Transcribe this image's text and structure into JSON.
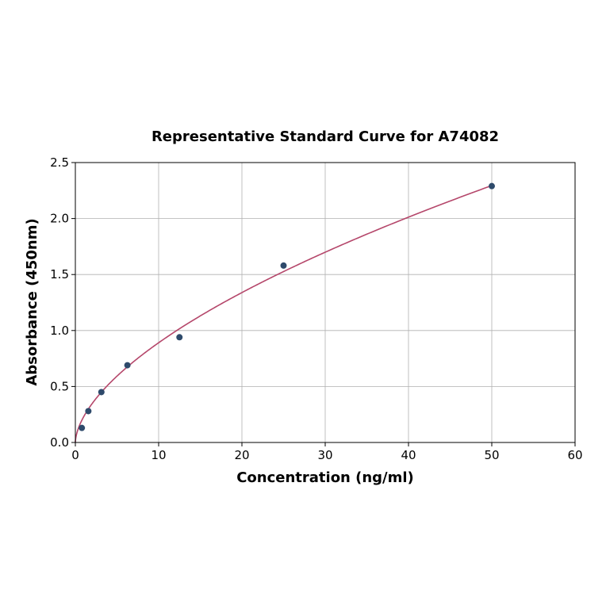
{
  "chart_data": {
    "type": "scatter",
    "title": "Representative Standard Curve for A74082",
    "xlabel": "Concentration (ng/ml)",
    "ylabel": "Absorbance (450nm)",
    "xlim": [
      0,
      60
    ],
    "ylim": [
      0,
      2.5
    ],
    "xticks": [
      "0",
      "10",
      "20",
      "30",
      "40",
      "50",
      "60"
    ],
    "yticks": [
      "0.0",
      "0.5",
      "1.0",
      "1.5",
      "2.0",
      "2.5"
    ],
    "grid": true,
    "points": [
      {
        "x": 0.78,
        "y": 0.13
      },
      {
        "x": 1.56,
        "y": 0.28
      },
      {
        "x": 3.125,
        "y": 0.45
      },
      {
        "x": 6.25,
        "y": 0.69
      },
      {
        "x": 12.5,
        "y": 0.94
      },
      {
        "x": 25,
        "y": 1.58
      },
      {
        "x": 50,
        "y": 2.29
      }
    ],
    "fit_curve": {
      "model": "power",
      "a": 0.23,
      "b": 0.588,
      "x_range": [
        0,
        50
      ]
    },
    "colors": {
      "points": "#2e4a6b",
      "curve": "#b5476b",
      "grid": "#b0b0b0"
    }
  }
}
